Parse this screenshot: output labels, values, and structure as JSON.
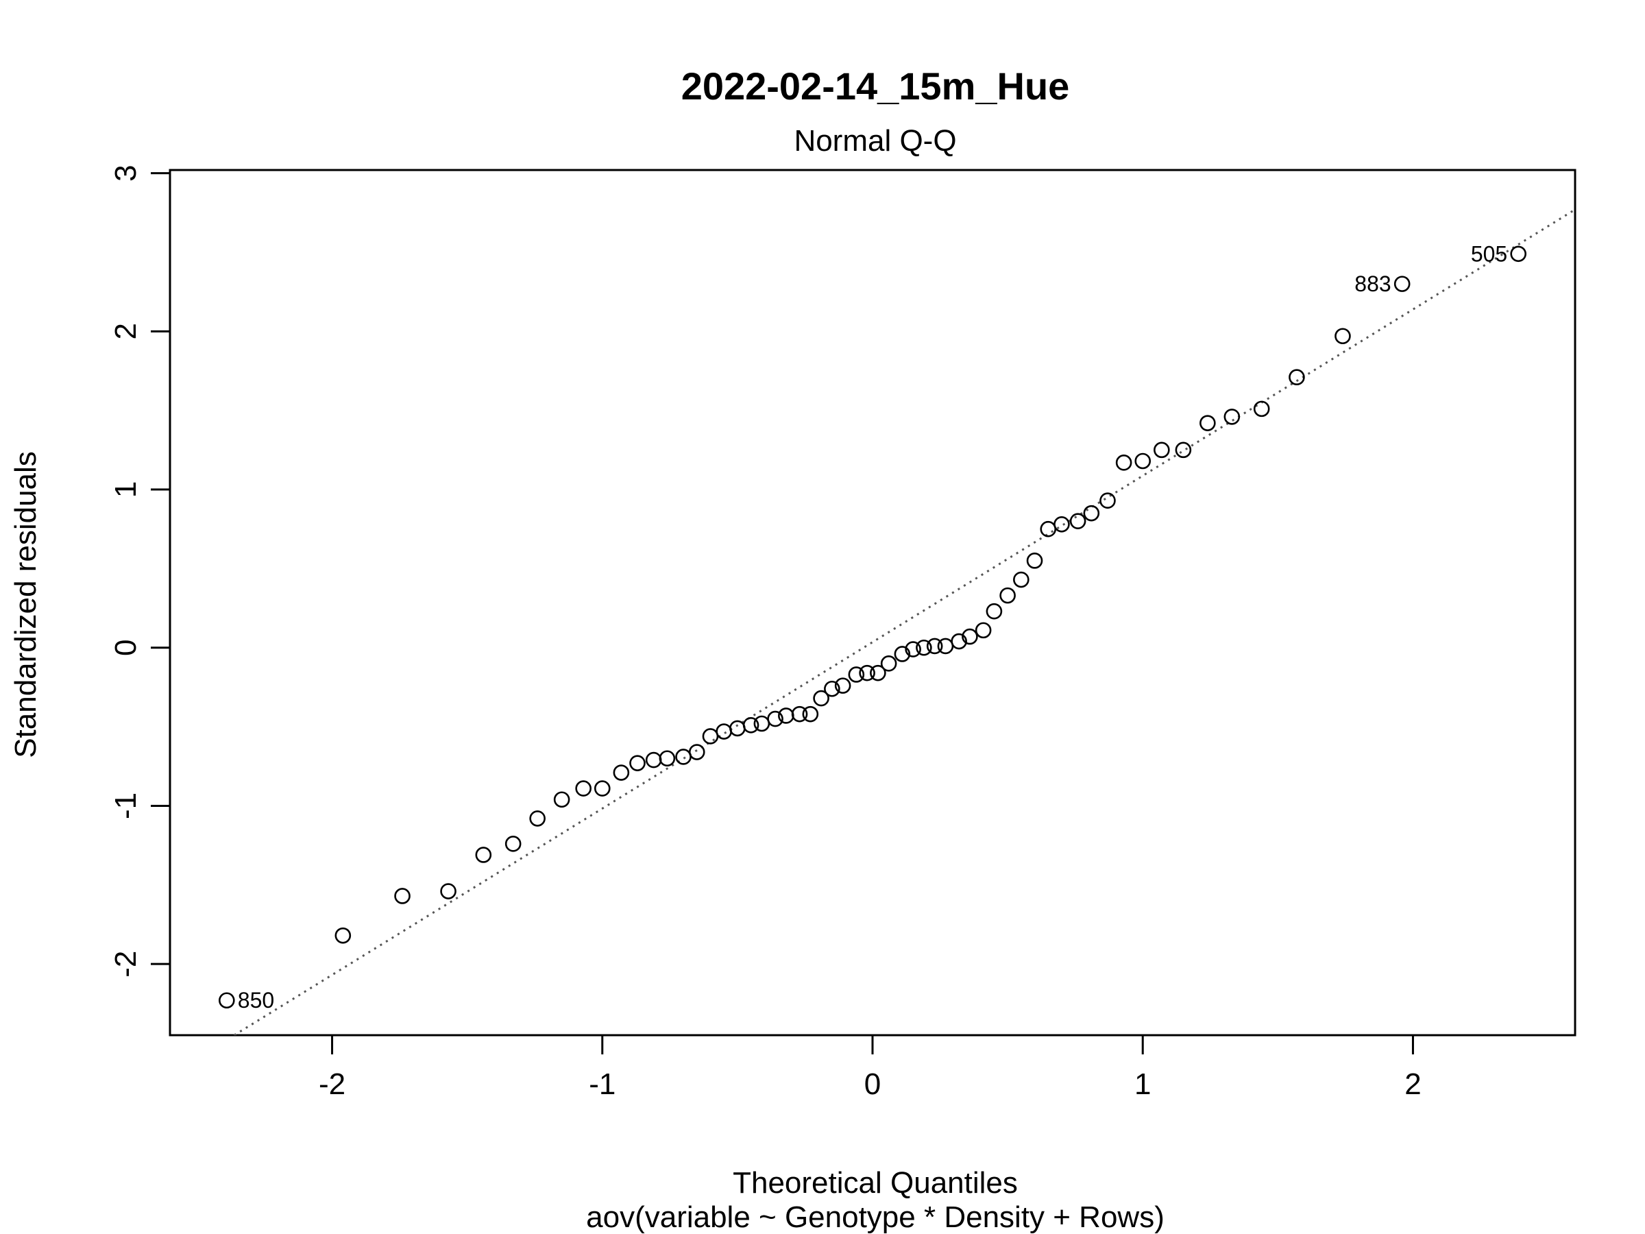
{
  "chart_data": {
    "type": "scatter",
    "title": "2022-02-14_15m_Hue",
    "subtitle": "Normal Q-Q",
    "xlabel": "Theoretical Quantiles",
    "xlabel_sub": "aov(variable ~ Genotype * Density + Rows)",
    "ylabel": "Standardized residuals",
    "xlim": [
      -2.6,
      2.6
    ],
    "ylim": [
      -2.45,
      3.02
    ],
    "x_ticks": [
      -2,
      -1,
      0,
      1,
      2
    ],
    "y_ticks": [
      -2,
      -1,
      0,
      1,
      2,
      3
    ],
    "grid": false,
    "reference_line": {
      "x": [
        -2.6,
        2.6
      ],
      "y": [
        -2.7,
        2.77
      ],
      "style": "dotted",
      "color": "#555555"
    },
    "points": [
      {
        "x": -2.39,
        "y": -2.23
      },
      {
        "x": -1.96,
        "y": -1.82
      },
      {
        "x": -1.74,
        "y": -1.57
      },
      {
        "x": -1.57,
        "y": -1.54
      },
      {
        "x": -1.44,
        "y": -1.31
      },
      {
        "x": -1.33,
        "y": -1.24
      },
      {
        "x": -1.24,
        "y": -1.08
      },
      {
        "x": -1.15,
        "y": -0.96
      },
      {
        "x": -1.07,
        "y": -0.89
      },
      {
        "x": -1.0,
        "y": -0.89
      },
      {
        "x": -0.93,
        "y": -0.79
      },
      {
        "x": -0.87,
        "y": -0.73
      },
      {
        "x": -0.81,
        "y": -0.71
      },
      {
        "x": -0.76,
        "y": -0.7
      },
      {
        "x": -0.7,
        "y": -0.69
      },
      {
        "x": -0.65,
        "y": -0.66
      },
      {
        "x": -0.6,
        "y": -0.56
      },
      {
        "x": -0.55,
        "y": -0.53
      },
      {
        "x": -0.5,
        "y": -0.51
      },
      {
        "x": -0.45,
        "y": -0.49
      },
      {
        "x": -0.41,
        "y": -0.48
      },
      {
        "x": -0.36,
        "y": -0.45
      },
      {
        "x": -0.32,
        "y": -0.43
      },
      {
        "x": -0.27,
        "y": -0.42
      },
      {
        "x": -0.23,
        "y": -0.42
      },
      {
        "x": -0.19,
        "y": -0.32
      },
      {
        "x": -0.15,
        "y": -0.26
      },
      {
        "x": -0.11,
        "y": -0.24
      },
      {
        "x": -0.06,
        "y": -0.17
      },
      {
        "x": -0.02,
        "y": -0.16
      },
      {
        "x": 0.02,
        "y": -0.16
      },
      {
        "x": 0.06,
        "y": -0.1
      },
      {
        "x": 0.11,
        "y": -0.04
      },
      {
        "x": 0.15,
        "y": -0.01
      },
      {
        "x": 0.19,
        "y": 0.0
      },
      {
        "x": 0.23,
        "y": 0.01
      },
      {
        "x": 0.27,
        "y": 0.01
      },
      {
        "x": 0.32,
        "y": 0.04
      },
      {
        "x": 0.36,
        "y": 0.07
      },
      {
        "x": 0.41,
        "y": 0.11
      },
      {
        "x": 0.45,
        "y": 0.23
      },
      {
        "x": 0.5,
        "y": 0.33
      },
      {
        "x": 0.55,
        "y": 0.43
      },
      {
        "x": 0.6,
        "y": 0.55
      },
      {
        "x": 0.65,
        "y": 0.75
      },
      {
        "x": 0.7,
        "y": 0.78
      },
      {
        "x": 0.76,
        "y": 0.8
      },
      {
        "x": 0.81,
        "y": 0.85
      },
      {
        "x": 0.87,
        "y": 0.93
      },
      {
        "x": 0.93,
        "y": 1.17
      },
      {
        "x": 1.0,
        "y": 1.18
      },
      {
        "x": 1.07,
        "y": 1.25
      },
      {
        "x": 1.15,
        "y": 1.25
      },
      {
        "x": 1.24,
        "y": 1.42
      },
      {
        "x": 1.33,
        "y": 1.46
      },
      {
        "x": 1.44,
        "y": 1.51
      },
      {
        "x": 1.57,
        "y": 1.71
      },
      {
        "x": 1.74,
        "y": 1.97
      },
      {
        "x": 1.96,
        "y": 2.3,
        "label": "883"
      },
      {
        "x": 2.39,
        "y": 2.49,
        "label": "505"
      },
      {
        "x": -2.39,
        "y": -2.23,
        "label": "850",
        "label_only": true
      }
    ]
  }
}
